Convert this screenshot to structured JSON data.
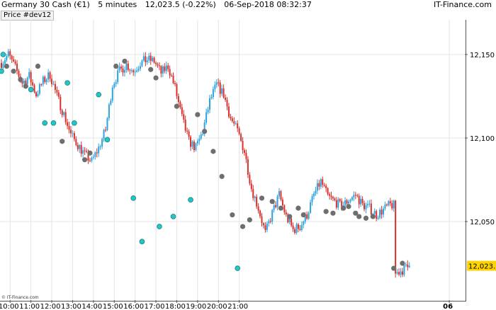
{
  "header": {
    "symbol": "Germany 30 Cash (€1)",
    "interval": "5 minutes",
    "price_change": "12,023.5 (-0.22%)",
    "datetime": "06-Sep-2018 08:32:37",
    "brand": "IT-Finance.com"
  },
  "indicator_label": "Price #dev12",
  "copyright": "© IT-Finance.com",
  "current_price_label": "12,023.5",
  "colors": {
    "up": "#2aa3e0",
    "down": "#d9302b",
    "marker_up": "#21c7c7",
    "marker_down": "#6e6e6e",
    "grid": "#e4e4e4",
    "price_label_bg": "#ffd400"
  },
  "chart_data": {
    "type": "candlestick",
    "y_ticks": [
      "12,150",
      "12,100",
      "12,050"
    ],
    "y_tick_values": [
      12150,
      12100,
      12050
    ],
    "ylim": [
      12004,
      12178
    ],
    "x_ticks": [
      "10:00",
      "11:00",
      "12:00",
      "13:00",
      "14:00",
      "15:00",
      "16:00",
      "17:00",
      "18:00",
      "19:00",
      "20:00",
      "21:00",
      "06"
    ],
    "current_price": 12023.5,
    "price_path": [
      [
        0,
        12145
      ],
      [
        4,
        12150
      ],
      [
        8,
        12142
      ],
      [
        12,
        12133
      ],
      [
        16,
        12137
      ],
      [
        20,
        12126
      ],
      [
        24,
        12134
      ],
      [
        28,
        12138
      ],
      [
        32,
        12125
      ],
      [
        36,
        12114
      ],
      [
        40,
        12102
      ],
      [
        44,
        12096
      ],
      [
        48,
        12090
      ],
      [
        52,
        12086
      ],
      [
        56,
        12094
      ],
      [
        60,
        12105
      ],
      [
        64,
        12132
      ],
      [
        68,
        12140
      ],
      [
        72,
        12144
      ],
      [
        76,
        12140
      ],
      [
        80,
        12145
      ],
      [
        84,
        12147
      ],
      [
        88,
        12146
      ],
      [
        92,
        12139
      ],
      [
        96,
        12143
      ],
      [
        100,
        12130
      ],
      [
        104,
        12112
      ],
      [
        108,
        12098
      ],
      [
        112,
        12094
      ],
      [
        116,
        12104
      ],
      [
        120,
        12122
      ],
      [
        124,
        12132
      ],
      [
        128,
        12126
      ],
      [
        132,
        12112
      ],
      [
        136,
        12104
      ],
      [
        140,
        12092
      ],
      [
        144,
        12070
      ],
      [
        148,
        12058
      ],
      [
        152,
        12043
      ],
      [
        156,
        12055
      ],
      [
        160,
        12066
      ],
      [
        164,
        12053
      ],
      [
        168,
        12045
      ],
      [
        172,
        12047
      ],
      [
        176,
        12054
      ],
      [
        180,
        12066
      ],
      [
        184,
        12074
      ],
      [
        188,
        12065
      ],
      [
        192,
        12062
      ],
      [
        196,
        12059
      ],
      [
        200,
        12063
      ],
      [
        204,
        12066
      ],
      [
        208,
        12060
      ],
      [
        212,
        12058
      ],
      [
        216,
        12054
      ],
      [
        220,
        12057
      ],
      [
        224,
        12060
      ],
      [
        228,
        12059
      ],
      [
        232,
        12058
      ],
      [
        236,
        12060
      ],
      [
        240,
        12066
      ],
      [
        244,
        12063
      ],
      [
        248,
        12054
      ],
      [
        252,
        12052
      ],
      [
        256,
        12019
      ],
      [
        260,
        12021
      ],
      [
        264,
        12023.5
      ]
    ],
    "markers_up": [
      [
        0,
        12140
      ],
      [
        1,
        12150
      ],
      [
        17,
        12129
      ],
      [
        25,
        12109
      ],
      [
        30,
        12109
      ],
      [
        38,
        12133
      ],
      [
        42,
        12109
      ],
      [
        56,
        12126
      ],
      [
        61,
        12099
      ],
      [
        76,
        12064
      ],
      [
        81,
        12038
      ],
      [
        91,
        12047
      ],
      [
        99,
        12053
      ],
      [
        109,
        12063
      ],
      [
        136,
        12022
      ]
    ],
    "markers_down": [
      [
        3,
        12143
      ],
      [
        7,
        12140
      ],
      [
        11,
        12135
      ],
      [
        14,
        12131
      ],
      [
        21,
        12143
      ],
      [
        35,
        12098
      ],
      [
        48,
        12087
      ],
      [
        51,
        12091
      ],
      [
        66,
        12143
      ],
      [
        71,
        12146
      ],
      [
        86,
        12141
      ],
      [
        89,
        12136
      ],
      [
        101,
        12119
      ],
      [
        113,
        12114
      ],
      [
        117,
        12104
      ],
      [
        122,
        12092
      ],
      [
        127,
        12077
      ],
      [
        133,
        12054
      ],
      [
        139,
        12047
      ],
      [
        143,
        12051
      ],
      [
        150,
        12064
      ],
      [
        156,
        12062
      ],
      [
        161,
        12058
      ],
      [
        166,
        12053
      ],
      [
        171,
        12058
      ],
      [
        174,
        12054
      ],
      [
        187,
        12056
      ],
      [
        191,
        12055
      ],
      [
        197,
        12058
      ],
      [
        200,
        12059
      ],
      [
        204,
        12055
      ],
      [
        206,
        12053
      ],
      [
        210,
        12052
      ],
      [
        214,
        12053
      ],
      [
        226,
        12022
      ],
      [
        231,
        12025
      ]
    ]
  }
}
